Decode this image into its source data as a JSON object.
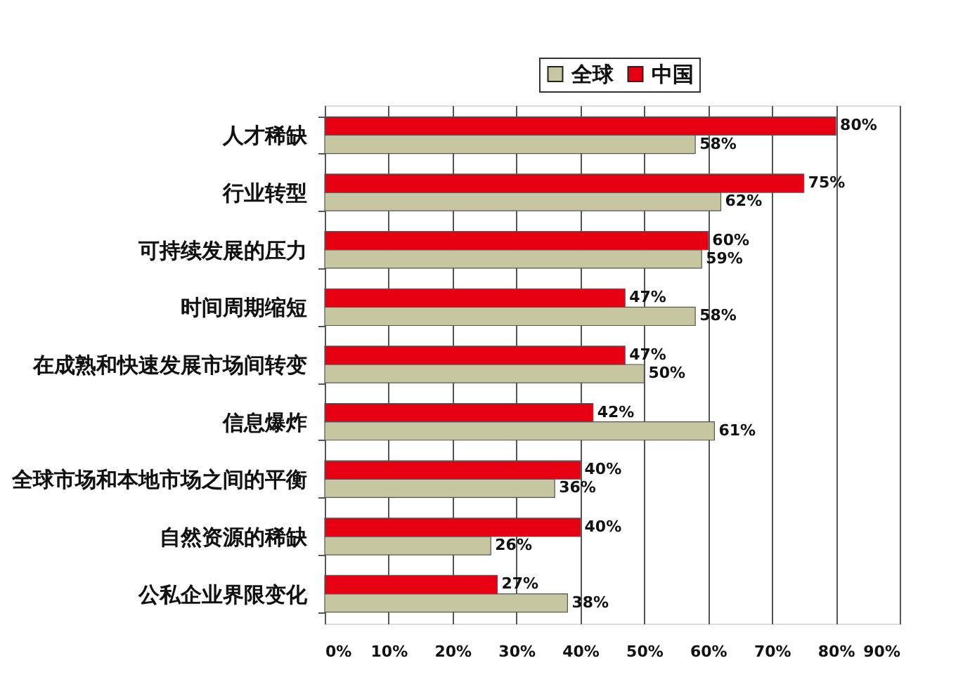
{
  "chart_data": {
    "type": "bar",
    "orientation": "horizontal",
    "categories": [
      "人才稀缺",
      "行业转型",
      "可持续发展的压力",
      "时间周期缩短",
      "在成熟和快速发展市场间转变",
      "信息爆炸",
      "全球市场和本地市场之间的平衡",
      "自然资源的稀缺",
      "公私企业界限变化"
    ],
    "series": [
      {
        "name": "全球",
        "color": "#c6c6a0",
        "values": [
          58,
          62,
          59,
          58,
          50,
          61,
          36,
          26,
          38
        ],
        "value_labels": [
          "58%",
          "62%",
          "59%",
          "58%",
          "50%",
          "61%",
          "36%",
          "26%",
          "38%"
        ]
      },
      {
        "name": "中国",
        "color": "#e60012",
        "values": [
          80,
          75,
          60,
          47,
          47,
          42,
          40,
          40,
          27
        ],
        "value_labels": [
          "80%",
          "75%",
          "60%",
          "47%",
          "47%",
          "42%",
          "40%",
          "40%",
          "27%"
        ]
      }
    ],
    "xlim": [
      0,
      90
    ],
    "xticks": [
      {
        "value": 0,
        "label": "0%"
      },
      {
        "value": 10,
        "label": "10%"
      },
      {
        "value": 20,
        "label": "20%"
      },
      {
        "value": 30,
        "label": "30%"
      },
      {
        "value": 40,
        "label": "40%"
      },
      {
        "value": 50,
        "label": "50%"
      },
      {
        "value": 60,
        "label": "60%"
      },
      {
        "value": 70,
        "label": "70%"
      },
      {
        "value": 80,
        "label": "80%"
      },
      {
        "value": 90,
        "label": "90%"
      }
    ],
    "grid": "x",
    "legend": "top"
  }
}
